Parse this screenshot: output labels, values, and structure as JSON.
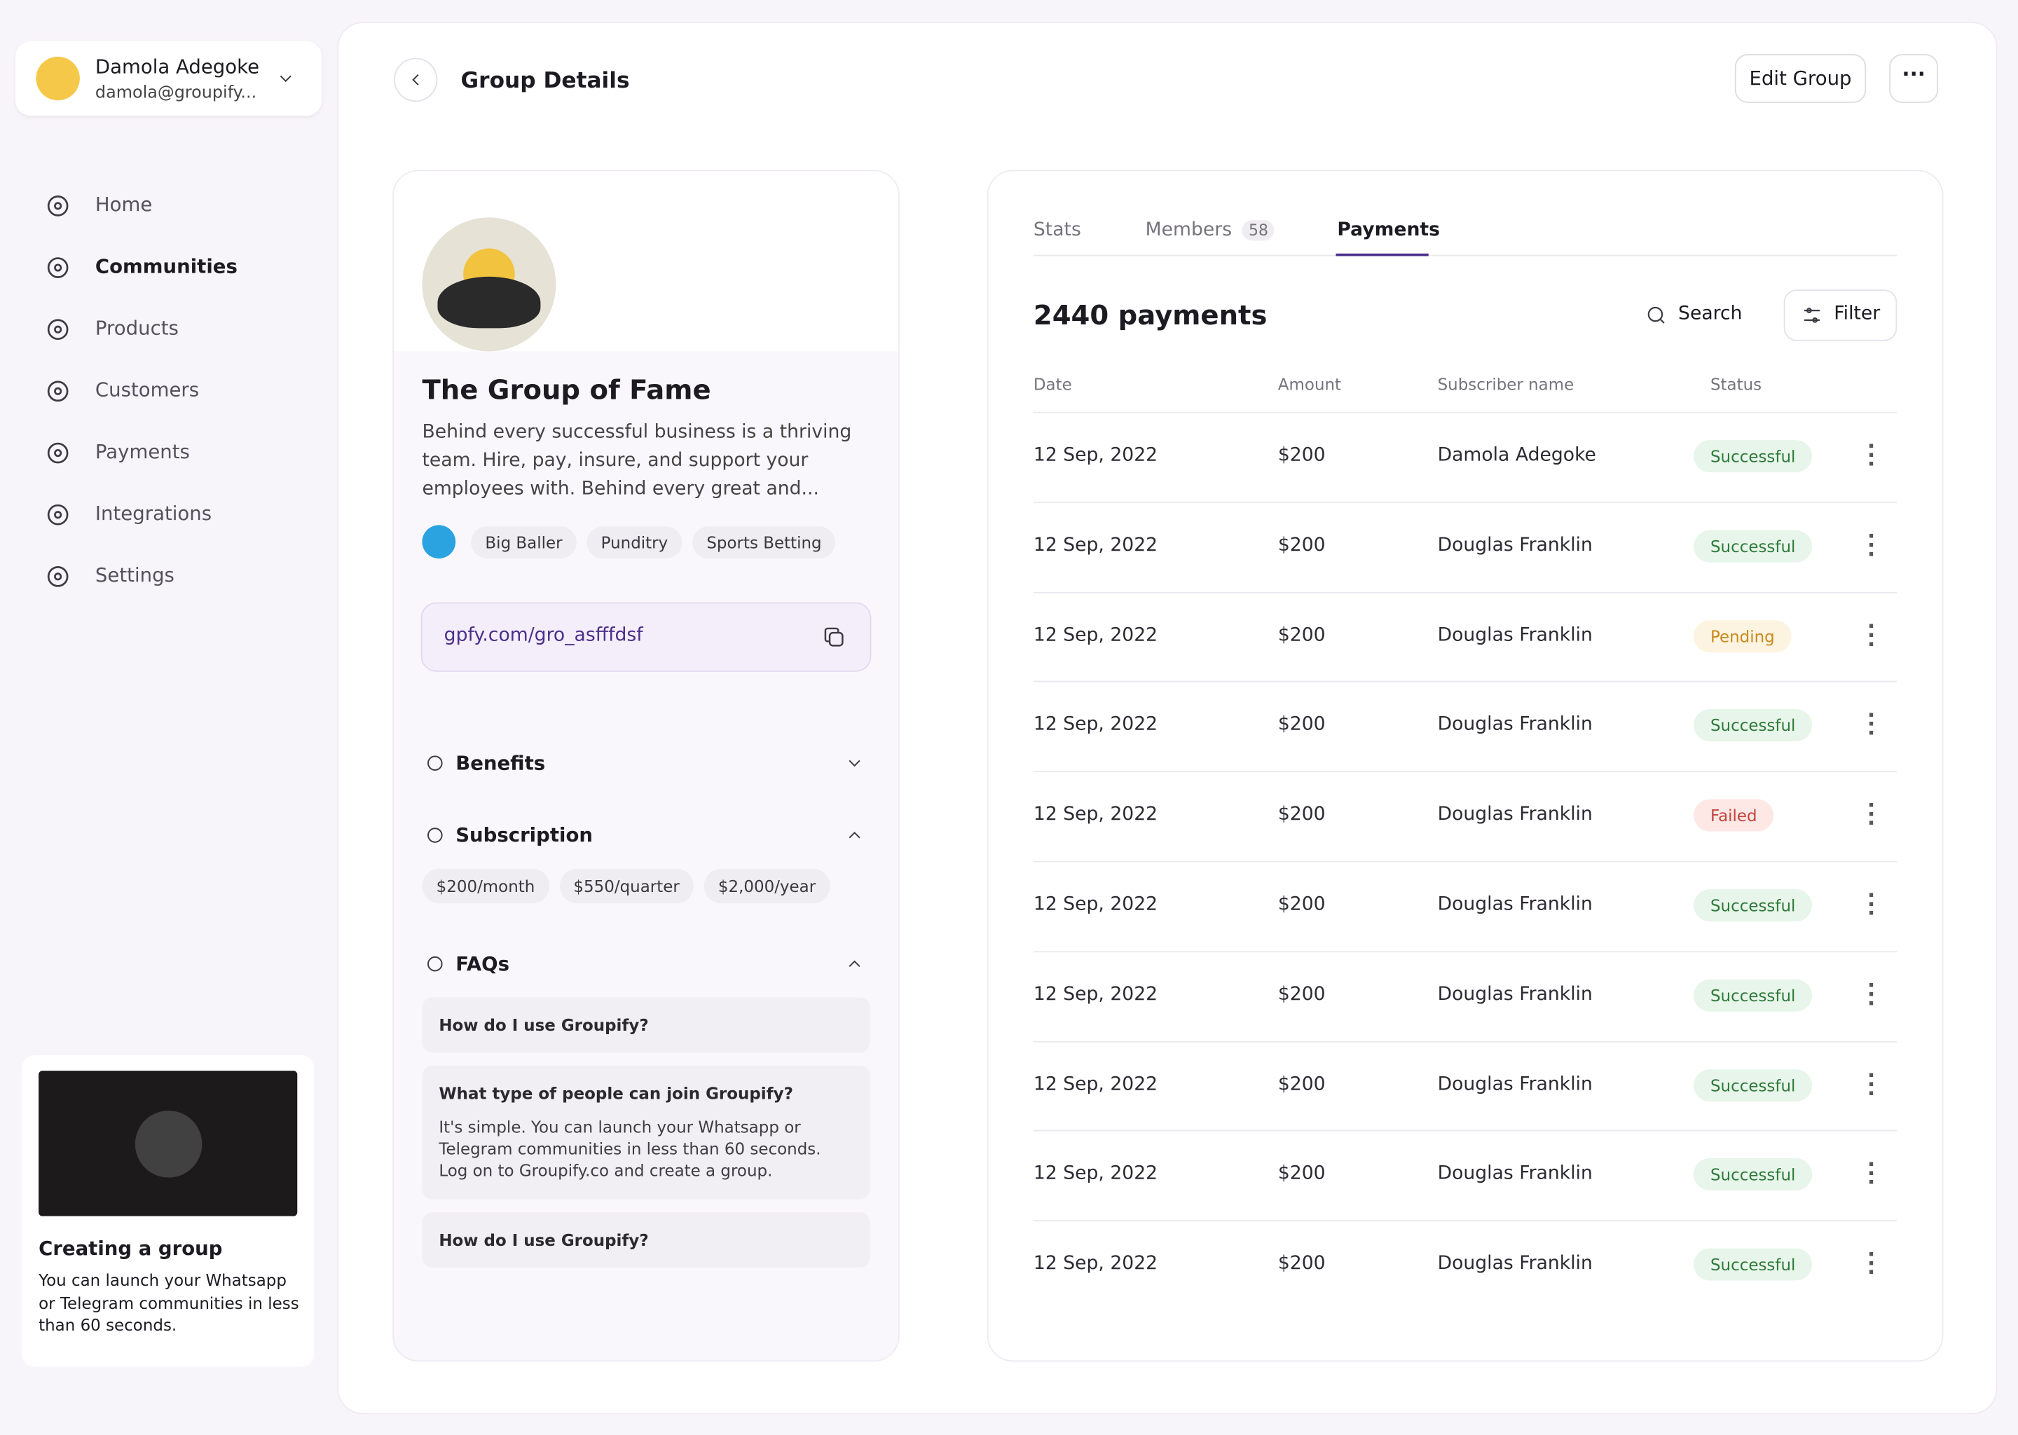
{
  "user": {
    "name": "Damola Adegoke",
    "email": "damola@groupify..."
  },
  "nav": {
    "items": [
      "Home",
      "Communities",
      "Products",
      "Customers",
      "Payments",
      "Integrations",
      "Settings"
    ]
  },
  "promo": {
    "title": "Creating a group",
    "text": "You can launch your Whatsapp or Telegram communities in less than 60 seconds."
  },
  "header": {
    "title": "Group Details",
    "edit_button": "Edit Group"
  },
  "group": {
    "name": "The Group of Fame",
    "description": "Behind every successful business is a thriving team. Hire, pay, insure, and support your employees with. Behind every great and...",
    "tags": [
      "Big Baller",
      "Punditry",
      "Sports Betting"
    ],
    "link": "gpfy.com/gro_asfffdsf",
    "benefits": "Benefits",
    "subscription": "Subscription",
    "prices": [
      "$200/month",
      "$550/quarter",
      "$2,000/year"
    ],
    "faqs": {
      "title": "FAQs",
      "items": [
        {
          "q": "How do I use Groupify?"
        },
        {
          "q": "What type of people can join Groupify?",
          "a": "It's simple. You can launch your Whatsapp or Telegram communities in less than 60 seconds. Log on to Groupify.co and create a group."
        },
        {
          "q": "How do I use Groupify?"
        }
      ]
    }
  },
  "tabs": {
    "items": [
      "Stats",
      "Members",
      "Payments"
    ],
    "members_count": 58
  },
  "payments": {
    "title": "2440 payments",
    "search": "Search",
    "filter": "Filter",
    "columns": [
      "Date",
      "Amount",
      "Subscriber name",
      "Status"
    ],
    "rows": [
      [
        "12 Sep, 2022",
        "$200",
        "Damola Adegoke",
        "Successful"
      ],
      [
        "12 Sep, 2022",
        "$200",
        "Douglas Franklin",
        "Successful"
      ],
      [
        "12 Sep, 2022",
        "$200",
        "Douglas Franklin",
        "Pending"
      ],
      [
        "12 Sep, 2022",
        "$200",
        "Douglas Franklin",
        "Successful"
      ],
      [
        "12 Sep, 2022",
        "$200",
        "Douglas Franklin",
        "Failed"
      ],
      [
        "12 Sep, 2022",
        "$200",
        "Douglas Franklin",
        "Successful"
      ],
      [
        "12 Sep, 2022",
        "$200",
        "Douglas Franklin",
        "Successful"
      ],
      [
        "12 Sep, 2022",
        "$200",
        "Douglas Franklin",
        "Successful"
      ],
      [
        "12 Sep, 2022",
        "$200",
        "Douglas Franklin",
        "Successful"
      ],
      [
        "12 Sep, 2022",
        "$200",
        "Douglas Franklin",
        "Successful"
      ]
    ]
  }
}
